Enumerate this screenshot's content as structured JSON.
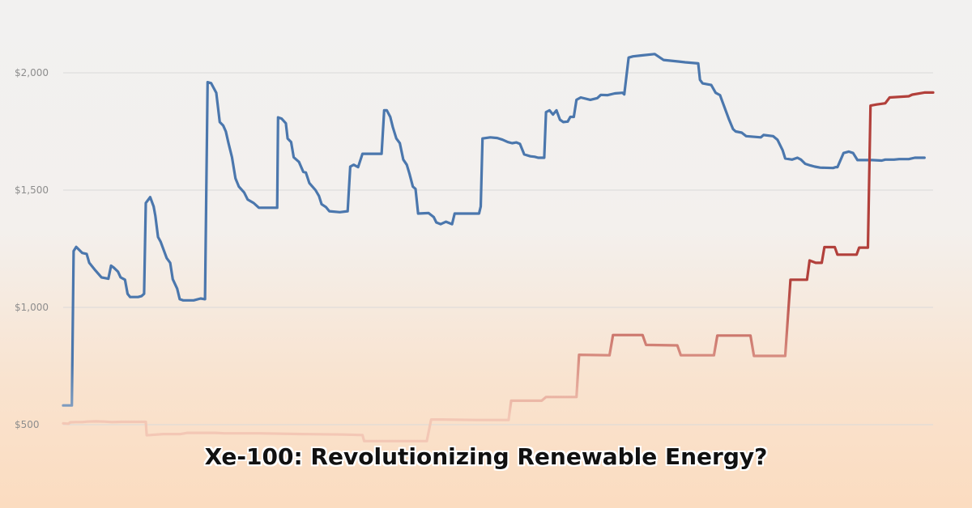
{
  "chart_data": {
    "type": "line",
    "title": "",
    "xlabel": "",
    "ylabel": "",
    "ylim": [
      420,
      2180
    ],
    "y_ticks": [
      {
        "value": 500,
        "label": "$500"
      },
      {
        "value": 1000,
        "label": "$1,000"
      },
      {
        "value": 1500,
        "label": "$1,500"
      },
      {
        "value": 2000,
        "label": "$2,000"
      }
    ],
    "grid": true,
    "legend": "none",
    "x_index_count": 1000,
    "series": [
      {
        "color": "#4b77ad",
        "start_color": "#b3c2d1",
        "points": [
          [
            0,
            582
          ],
          [
            10,
            582
          ],
          [
            12,
            1240
          ],
          [
            15,
            1258
          ],
          [
            22,
            1232
          ],
          [
            27,
            1228
          ],
          [
            30,
            1190
          ],
          [
            37,
            1158
          ],
          [
            44,
            1128
          ],
          [
            52,
            1122
          ],
          [
            55,
            1178
          ],
          [
            58,
            1170
          ],
          [
            63,
            1152
          ],
          [
            66,
            1128
          ],
          [
            71,
            1118
          ],
          [
            74,
            1058
          ],
          [
            77,
            1044
          ],
          [
            86,
            1044
          ],
          [
            90,
            1048
          ],
          [
            93,
            1058
          ],
          [
            95,
            1445
          ],
          [
            100,
            1470
          ],
          [
            104,
            1430
          ],
          [
            106,
            1390
          ],
          [
            109,
            1300
          ],
          [
            112,
            1280
          ],
          [
            116,
            1240
          ],
          [
            119,
            1210
          ],
          [
            123,
            1190
          ],
          [
            126,
            1120
          ],
          [
            131,
            1080
          ],
          [
            134,
            1035
          ],
          [
            138,
            1030
          ],
          [
            150,
            1030
          ],
          [
            158,
            1038
          ],
          [
            163,
            1035
          ],
          [
            166,
            1960
          ],
          [
            170,
            1956
          ],
          [
            176,
            1915
          ],
          [
            180,
            1790
          ],
          [
            184,
            1775
          ],
          [
            187,
            1750
          ],
          [
            190,
            1700
          ],
          [
            194,
            1640
          ],
          [
            198,
            1550
          ],
          [
            202,
            1515
          ],
          [
            208,
            1490
          ],
          [
            212,
            1460
          ],
          [
            219,
            1445
          ],
          [
            225,
            1425
          ],
          [
            246,
            1425
          ],
          [
            247,
            1810
          ],
          [
            251,
            1805
          ],
          [
            256,
            1785
          ],
          [
            258,
            1720
          ],
          [
            262,
            1705
          ],
          [
            265,
            1640
          ],
          [
            271,
            1620
          ],
          [
            276,
            1578
          ],
          [
            279,
            1575
          ],
          [
            283,
            1530
          ],
          [
            290,
            1500
          ],
          [
            294,
            1475
          ],
          [
            297,
            1440
          ],
          [
            302,
            1428
          ],
          [
            306,
            1410
          ],
          [
            318,
            1406
          ],
          [
            327,
            1410
          ],
          [
            330,
            1600
          ],
          [
            334,
            1608
          ],
          [
            339,
            1598
          ],
          [
            344,
            1655
          ],
          [
            366,
            1655
          ],
          [
            369,
            1840
          ],
          [
            372,
            1840
          ],
          [
            376,
            1812
          ],
          [
            379,
            1768
          ],
          [
            383,
            1720
          ],
          [
            387,
            1700
          ],
          [
            391,
            1630
          ],
          [
            395,
            1608
          ],
          [
            398,
            1570
          ],
          [
            402,
            1515
          ],
          [
            405,
            1505
          ],
          [
            408,
            1400
          ],
          [
            420,
            1402
          ],
          [
            426,
            1385
          ],
          [
            429,
            1362
          ],
          [
            434,
            1355
          ],
          [
            440,
            1365
          ],
          [
            447,
            1355
          ],
          [
            450,
            1400
          ],
          [
            478,
            1400
          ],
          [
            480,
            1430
          ],
          [
            482,
            1720
          ],
          [
            491,
            1725
          ],
          [
            499,
            1722
          ],
          [
            505,
            1715
          ],
          [
            511,
            1705
          ],
          [
            516,
            1700
          ],
          [
            521,
            1703
          ],
          [
            525,
            1697
          ],
          [
            530,
            1652
          ],
          [
            537,
            1644
          ],
          [
            542,
            1642
          ],
          [
            546,
            1638
          ],
          [
            553,
            1638
          ],
          [
            555,
            1832
          ],
          [
            559,
            1840
          ],
          [
            563,
            1822
          ],
          [
            567,
            1840
          ],
          [
            571,
            1800
          ],
          [
            575,
            1790
          ],
          [
            580,
            1792
          ],
          [
            583,
            1812
          ],
          [
            587,
            1812
          ],
          [
            590,
            1885
          ],
          [
            595,
            1895
          ],
          [
            606,
            1885
          ],
          [
            614,
            1892
          ],
          [
            618,
            1906
          ],
          [
            626,
            1905
          ],
          [
            634,
            1912
          ],
          [
            643,
            1915
          ],
          [
            645,
            1908
          ],
          [
            650,
            2065
          ],
          [
            655,
            2070
          ],
          [
            665,
            2074
          ],
          [
            680,
            2080
          ],
          [
            690,
            2055
          ],
          [
            708,
            2048
          ],
          [
            715,
            2045
          ],
          [
            730,
            2040
          ],
          [
            732,
            1970
          ],
          [
            735,
            1955
          ],
          [
            745,
            1948
          ],
          [
            750,
            1915
          ],
          [
            755,
            1905
          ],
          [
            758,
            1875
          ],
          [
            765,
            1805
          ],
          [
            770,
            1760
          ],
          [
            773,
            1750
          ],
          [
            780,
            1745
          ],
          [
            785,
            1730
          ],
          [
            802,
            1725
          ],
          [
            805,
            1735
          ],
          [
            816,
            1730
          ],
          [
            821,
            1715
          ],
          [
            827,
            1670
          ],
          [
            830,
            1635
          ],
          [
            838,
            1630
          ],
          [
            844,
            1638
          ],
          [
            848,
            1630
          ],
          [
            853,
            1612
          ],
          [
            859,
            1605
          ],
          [
            864,
            1600
          ],
          [
            870,
            1596
          ],
          [
            885,
            1594
          ],
          [
            888,
            1598
          ],
          [
            890,
            1598
          ],
          [
            897,
            1658
          ],
          [
            903,
            1664
          ],
          [
            908,
            1658
          ],
          [
            913,
            1628
          ],
          [
            930,
            1628
          ],
          [
            941,
            1626
          ],
          [
            945,
            1630
          ],
          [
            955,
            1630
          ],
          [
            961,
            1632
          ],
          [
            972,
            1632
          ],
          [
            979,
            1638
          ],
          [
            990,
            1638
          ]
        ]
      },
      {
        "color": "#b2403b",
        "start_color": "#f3c7b5",
        "points": [
          [
            0,
            506
          ],
          [
            6,
            504
          ],
          [
            8,
            510
          ],
          [
            14,
            511
          ],
          [
            22,
            511
          ],
          [
            28,
            513
          ],
          [
            38,
            514
          ],
          [
            47,
            513
          ],
          [
            56,
            511
          ],
          [
            67,
            512
          ],
          [
            77,
            512
          ],
          [
            89,
            512
          ],
          [
            95,
            512
          ],
          [
            96,
            455
          ],
          [
            100,
            456
          ],
          [
            115,
            460
          ],
          [
            135,
            460
          ],
          [
            143,
            465
          ],
          [
            152,
            465
          ],
          [
            175,
            465
          ],
          [
            185,
            463
          ],
          [
            225,
            463
          ],
          [
            275,
            460
          ],
          [
            322,
            458
          ],
          [
            344,
            456
          ],
          [
            346,
            430
          ],
          [
            360,
            430
          ],
          [
            410,
            430
          ],
          [
            418,
            430
          ],
          [
            423,
            522
          ],
          [
            436,
            522
          ],
          [
            475,
            520
          ],
          [
            512,
            520
          ],
          [
            515,
            602
          ],
          [
            550,
            602
          ],
          [
            555,
            618
          ],
          [
            590,
            618
          ],
          [
            593,
            798
          ],
          [
            628,
            796
          ],
          [
            632,
            882
          ],
          [
            666,
            882
          ],
          [
            670,
            840
          ],
          [
            706,
            838
          ],
          [
            710,
            796
          ],
          [
            748,
            796
          ],
          [
            752,
            880
          ],
          [
            790,
            880
          ],
          [
            794,
            793
          ],
          [
            830,
            793
          ],
          [
            836,
            1118
          ],
          [
            855,
            1118
          ],
          [
            858,
            1200
          ],
          [
            865,
            1190
          ],
          [
            872,
            1190
          ],
          [
            875,
            1257
          ],
          [
            887,
            1257
          ],
          [
            890,
            1225
          ],
          [
            912,
            1225
          ],
          [
            915,
            1255
          ],
          [
            925,
            1255
          ],
          [
            928,
            1860
          ],
          [
            935,
            1865
          ],
          [
            945,
            1870
          ],
          [
            950,
            1895
          ],
          [
            972,
            1900
          ],
          [
            976,
            1907
          ],
          [
            990,
            1916
          ],
          [
            1000,
            1916
          ]
        ]
      }
    ]
  },
  "caption": {
    "text": "Xe-100: Revolutionizing Renewable Energy?"
  }
}
